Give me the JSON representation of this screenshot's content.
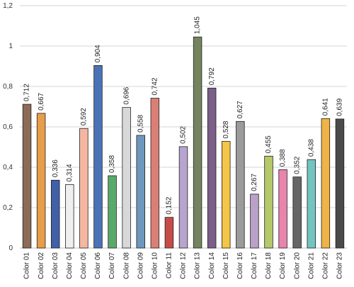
{
  "chart_data": {
    "type": "bar",
    "categories": [
      "Color 01",
      "Color 02",
      "Color 03",
      "Color 04",
      "Color 05",
      "Color 06",
      "Color 07",
      "Color 08",
      "Color 09",
      "Color 10",
      "Color 11",
      "Color 12",
      "Color 13",
      "Color 14",
      "Color 15",
      "Color 16",
      "Color 17",
      "Color 18",
      "Color 19",
      "Color 20",
      "Color 21",
      "Color 22",
      "Color 23"
    ],
    "values": [
      0.712,
      0.667,
      0.336,
      0.314,
      0.592,
      0.904,
      0.358,
      0.696,
      0.558,
      0.742,
      0.152,
      0.502,
      1.045,
      0.792,
      0.528,
      0.627,
      0.267,
      0.455,
      0.388,
      0.352,
      0.438,
      0.641,
      0.639
    ],
    "value_labels": [
      "0,712",
      "0,667",
      "0,336",
      "0,314",
      "0,592",
      "0,904",
      "0,358",
      "0,696",
      "0,558",
      "0,742",
      "0,152",
      "0,502",
      "1,045",
      "0,792",
      "0,528",
      "0,627",
      "0,267",
      "0,455",
      "0,388",
      "0,352",
      "0,438",
      "0,641",
      "0,639"
    ],
    "colors": [
      "#8d6b57",
      "#e79d49",
      "#4160a8",
      "#efefef",
      "#f5b7a1",
      "#4a73b7",
      "#5aa96a",
      "#d8d8d8",
      "#6f97bd",
      "#db7f76",
      "#c74c47",
      "#b7a5cf",
      "#74845e",
      "#7b5f88",
      "#f3c548",
      "#9b9b9b",
      "#b9a1c8",
      "#b5c86a",
      "#e984ad",
      "#666666",
      "#72c5c0",
      "#f0b347",
      "#4a4a4a"
    ],
    "y_ticks": [
      "0",
      "0,2",
      "0,4",
      "0,6",
      "0,8",
      "1",
      "1,2"
    ],
    "ylim": [
      0,
      1.2
    ],
    "grid": true,
    "legend": "none",
    "title": "",
    "xlabel": "",
    "ylabel": ""
  }
}
